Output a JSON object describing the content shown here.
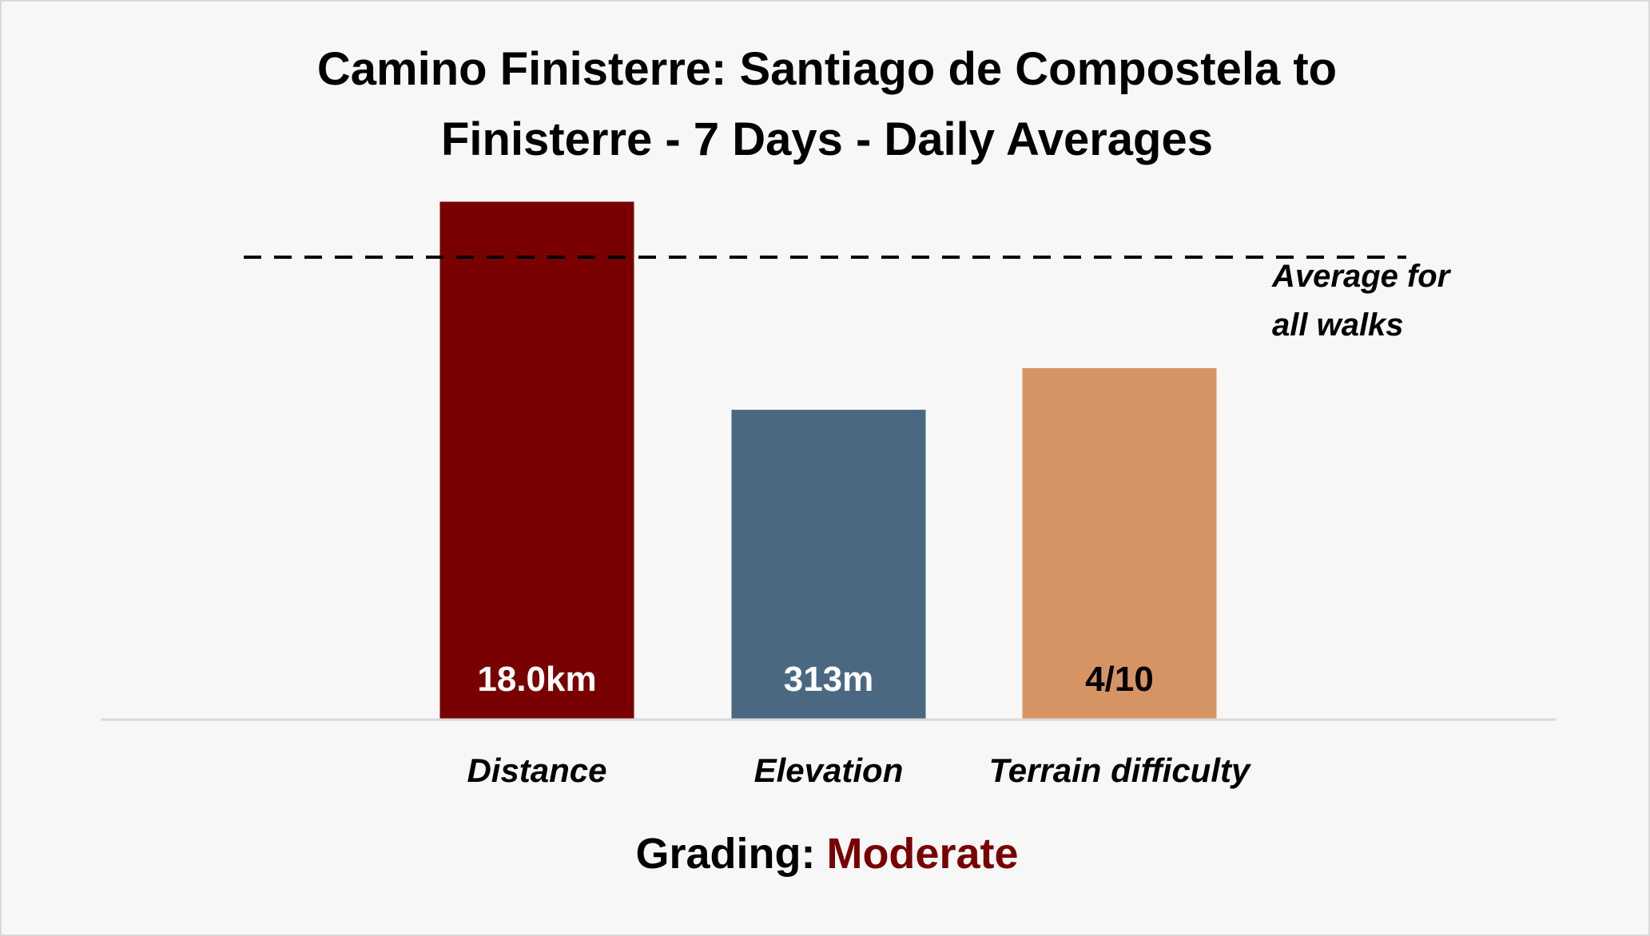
{
  "chart_data": {
    "type": "bar",
    "title_lines": [
      "Camino Finisterre: Santiago de Compostela to",
      "Finisterre - 7 Days - Daily Averages"
    ],
    "categories": [
      "Distance",
      "Elevation",
      "Terrain difficulty"
    ],
    "series": [
      {
        "values": [
          1.12,
          0.67,
          0.76
        ],
        "labels": [
          "18.0km",
          "313m",
          "4/10"
        ],
        "colors": [
          "#780000",
          "#4a6882",
          "#d69465"
        ],
        "label_colors": [
          "#ffffff",
          "#ffffff",
          "#000000"
        ]
      }
    ],
    "reference_line": {
      "value": 1.0,
      "label_lines": [
        "Average for",
        "all walks"
      ],
      "style": "dashed",
      "color": "#000000"
    },
    "ylim": [
      0,
      1.14
    ],
    "grid": false,
    "xlabel": "",
    "ylabel": "",
    "axis_color": "#d9d9d9"
  },
  "grading": {
    "label": "Grading:",
    "value": "Moderate",
    "value_color": "#780000"
  }
}
